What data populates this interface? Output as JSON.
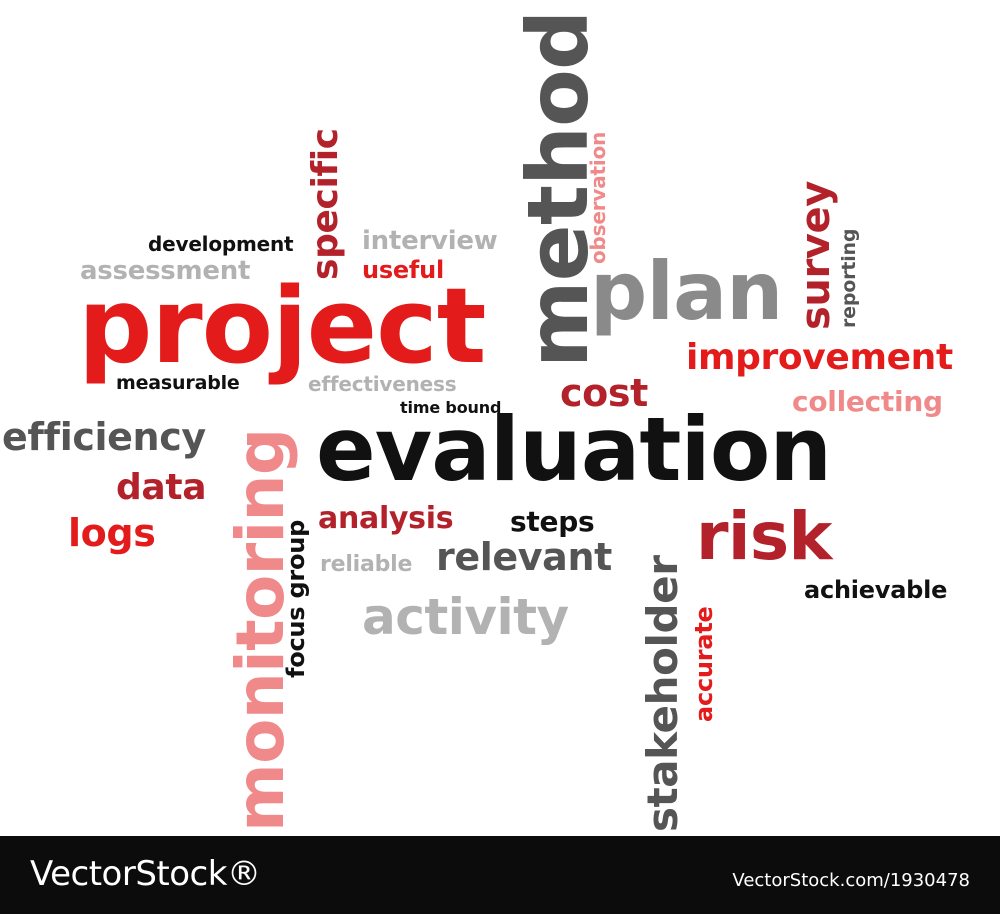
{
  "colors": {
    "red": "#e31b1b",
    "dark_red": "#b3222a",
    "pink": "#f08a8a",
    "gray": "#8a8a8a",
    "light_gray": "#b2b2b2",
    "dark_gray": "#555555",
    "black": "#111111",
    "banner_bg": "#0c0c0c"
  },
  "words": [
    {
      "text": "project",
      "color": "red"
    },
    {
      "text": "evaluation",
      "color": "black"
    },
    {
      "text": "method",
      "color": "dark_gray"
    },
    {
      "text": "plan",
      "color": "gray"
    },
    {
      "text": "risk",
      "color": "dark_red"
    },
    {
      "text": "monitoring",
      "color": "pink"
    },
    {
      "text": "stakeholder",
      "color": "dark_gray"
    },
    {
      "text": "activity",
      "color": "light_gray"
    },
    {
      "text": "relevant",
      "color": "dark_gray"
    },
    {
      "text": "improvement",
      "color": "red"
    },
    {
      "text": "survey",
      "color": "dark_red"
    },
    {
      "text": "specific",
      "color": "dark_red"
    },
    {
      "text": "efficiency",
      "color": "dark_gray"
    },
    {
      "text": "data",
      "color": "dark_red"
    },
    {
      "text": "logs",
      "color": "red"
    },
    {
      "text": "cost",
      "color": "dark_red"
    },
    {
      "text": "collecting",
      "color": "pink"
    },
    {
      "text": "assessment",
      "color": "light_gray"
    },
    {
      "text": "development",
      "color": "black"
    },
    {
      "text": "interview",
      "color": "light_gray"
    },
    {
      "text": "useful",
      "color": "red"
    },
    {
      "text": "measurable",
      "color": "black"
    },
    {
      "text": "effectiveness",
      "color": "light_gray"
    },
    {
      "text": "time bound",
      "color": "black"
    },
    {
      "text": "analysis",
      "color": "dark_red"
    },
    {
      "text": "steps",
      "color": "black"
    },
    {
      "text": "reliable",
      "color": "light_gray"
    },
    {
      "text": "focus group",
      "color": "black"
    },
    {
      "text": "accurate",
      "color": "red"
    },
    {
      "text": "achievable",
      "color": "black"
    },
    {
      "text": "observation",
      "color": "pink"
    },
    {
      "text": "reporting",
      "color": "dark_gray"
    }
  ],
  "footer": {
    "brand": "VectorStock®",
    "stock_id": "VectorStock.com/1930478"
  }
}
